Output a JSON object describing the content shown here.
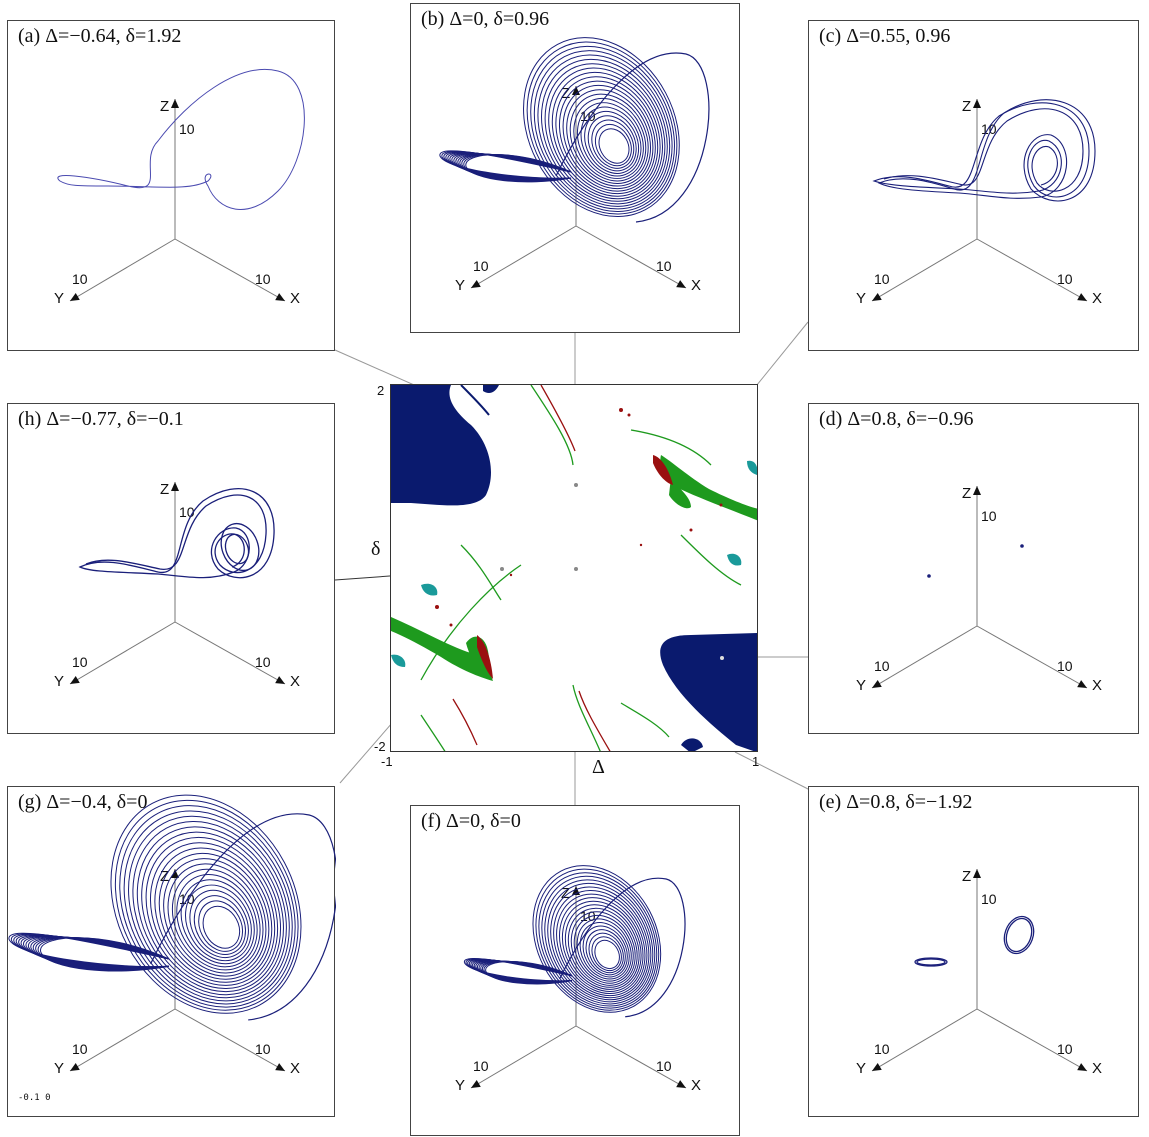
{
  "panels": {
    "a": {
      "title": "(a) Δ=−0.64, δ=1.92",
      "z_label": "Z",
      "y_label": "Y",
      "x_label": "X",
      "tick": "10",
      "kind": "single"
    },
    "b": {
      "title": "(b) Δ=0, δ=0.96",
      "z_label": "Z",
      "y_label": "Y",
      "x_label": "X",
      "tick": "10",
      "kind": "dense"
    },
    "c": {
      "title": "(c) Δ=0.55, 0.96",
      "z_label": "Z",
      "y_label": "Y",
      "x_label": "X",
      "tick": "10",
      "kind": "cycle"
    },
    "d": {
      "title": "(d) Δ=0.8, δ=−0.96",
      "z_label": "Z",
      "y_label": "Y",
      "x_label": "X",
      "tick": "10",
      "kind": "points"
    },
    "e": {
      "title": "(e) Δ=0.8, δ=−1.92",
      "z_label": "Z",
      "y_label": "Y",
      "x_label": "X",
      "tick": "10",
      "kind": "loops"
    },
    "f": {
      "title": "(f) Δ=0, δ=0",
      "z_label": "Z",
      "y_label": "Y",
      "x_label": "X",
      "tick": "10",
      "kind": "dense"
    },
    "g": {
      "title": "(g) Δ=−0.4, δ=0",
      "z_label": "Z",
      "y_label": "Y",
      "x_label": "X",
      "tick": "10",
      "kind": "dense"
    },
    "h": {
      "title": "(h) Δ=−0.77,  δ=−0.1",
      "z_label": "Z",
      "y_label": "Y",
      "x_label": "X",
      "tick": "10",
      "kind": "cycle"
    }
  },
  "center_map": {
    "x_symbol": "Δ",
    "y_symbol": "δ",
    "x_min_label": "-1",
    "x_max_label": "1",
    "y_min_label": "-2",
    "y_max_label": "2",
    "x_range": [
      -1,
      1
    ],
    "y_range": [
      -2,
      2
    ]
  },
  "corner_text": "-0.1 0",
  "colors": {
    "trajectory": "#1a1f7a",
    "stable_region": "#0a1a6e",
    "green_region": "#1e9a1e",
    "red_region": "#9a1010",
    "teal_region": "#1a9a9a",
    "connector": "#999999",
    "frame": "#444444"
  }
}
